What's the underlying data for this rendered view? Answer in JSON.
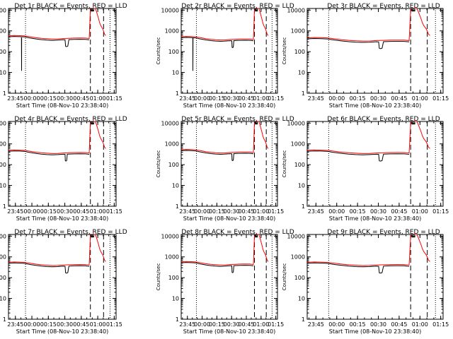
{
  "window": {
    "background": "#ffffff"
  },
  "colors": {
    "events": "#000000",
    "lld": "#ff0000",
    "axis": "#000000"
  },
  "chart_data": [
    {
      "type": "line",
      "title": "Det 1r BLACK = Events, RED = LLD",
      "variant": 0
    },
    {
      "type": "line",
      "title": "Det 2r BLACK = Events, RED = LLD",
      "variant": 1
    },
    {
      "type": "line",
      "title": "Det 3r BLACK = Events, RED = LLD",
      "variant": 2
    },
    {
      "type": "line",
      "title": "Det 4r BLACK = Events, RED = LLD",
      "variant": 3
    },
    {
      "type": "line",
      "title": "Det 5r BLACK = Events, RED = LLD",
      "variant": 4
    },
    {
      "type": "line",
      "title": "Det 6r BLACK = Events, RED = LLD",
      "variant": 5
    },
    {
      "type": "line",
      "title": "Det 7r BLACK = Events, RED = LLD",
      "variant": 6
    },
    {
      "type": "line",
      "title": "Det 8r BLACK = Events, RED = LLD",
      "variant": 7
    },
    {
      "type": "line",
      "title": "Det 9r BLACK = Events, RED = LLD",
      "variant": 8
    }
  ],
  "shared_axes": {
    "xlabel": "Start Time (08-Nov-10 23:38:40)",
    "ylabel": "Counts/sec",
    "yscale": "log",
    "ylim": [
      1,
      12000
    ],
    "xlim_minutes": [
      0,
      98
    ],
    "xticks": [
      {
        "label": "23:45",
        "value": 6.3
      },
      {
        "label": "00:00",
        "value": 21.3
      },
      {
        "label": "00:15",
        "value": 36.3
      },
      {
        "label": "00:30",
        "value": 51.3
      },
      {
        "label": "00:45",
        "value": 66.3
      },
      {
        "label": "01:00",
        "value": 81.3
      },
      {
        "label": "01:15",
        "value": 96.3
      }
    ],
    "yticks": [
      {
        "label": "1",
        "value": 1
      },
      {
        "label": "10",
        "value": 10
      },
      {
        "label": "100",
        "value": 100
      },
      {
        "label": "1000",
        "value": 1000
      },
      {
        "label": "10000",
        "value": 10000
      }
    ]
  },
  "markers": {
    "dotted_vlines": [
      15.5,
      92.5
    ],
    "dashed_vlines": [
      74.6,
      86.6
    ]
  },
  "series_base": {
    "events": {
      "name": "Events",
      "x": [
        0,
        5,
        10,
        15,
        18,
        20,
        25,
        30,
        35,
        40,
        45,
        50,
        51.5,
        52,
        53,
        54,
        55,
        60,
        65,
        70,
        73.5
      ],
      "y": [
        520,
        540,
        530,
        510,
        470,
        450,
        410,
        380,
        360,
        350,
        360,
        375,
        370,
        180,
        175,
        185,
        380,
        390,
        395,
        390,
        370
      ]
    },
    "events_dip": {
      "x": [
        11.8,
        11.9,
        12.0
      ],
      "y": [
        480,
        12,
        480
      ]
    },
    "lld": {
      "name": "LLD",
      "x": [
        0,
        5,
        10,
        15,
        20,
        25,
        30,
        35,
        40,
        45,
        50,
        55,
        60,
        65,
        70,
        73.5,
        74.6,
        76,
        77,
        79,
        80,
        81,
        82,
        83,
        84,
        85,
        86,
        87.5,
        88.5
      ],
      "y": [
        580,
        600,
        590,
        570,
        520,
        470,
        440,
        420,
        405,
        410,
        430,
        440,
        450,
        455,
        450,
        430,
        10000,
        12000,
        12000,
        12000,
        9000,
        6000,
        4000,
        2500,
        1800,
        1500,
        1200,
        700,
        600
      ]
    },
    "events_after": {
      "x": [
        74.6,
        75.2,
        76,
        77,
        78
      ],
      "y": [
        9000,
        10000,
        9500,
        9800,
        9500
      ]
    },
    "topbox": {
      "x0": 75.5,
      "x1": 77.5,
      "ylo": 9000,
      "yhi": 11500
    }
  },
  "variants": [
    {
      "dip": true,
      "narrow": false,
      "scale": 1.0
    },
    {
      "dip": true,
      "narrow": true,
      "scale": 0.9
    },
    {
      "dip": false,
      "narrow": false,
      "scale": 0.8
    },
    {
      "dip": false,
      "narrow": true,
      "scale": 0.85
    },
    {
      "dip": false,
      "narrow": true,
      "scale": 0.9
    },
    {
      "dip": false,
      "narrow": false,
      "scale": 0.85
    },
    {
      "dip": false,
      "narrow": false,
      "scale": 0.95
    },
    {
      "dip": false,
      "narrow": true,
      "scale": 1.0
    },
    {
      "dip": false,
      "narrow": false,
      "scale": 0.95
    }
  ]
}
